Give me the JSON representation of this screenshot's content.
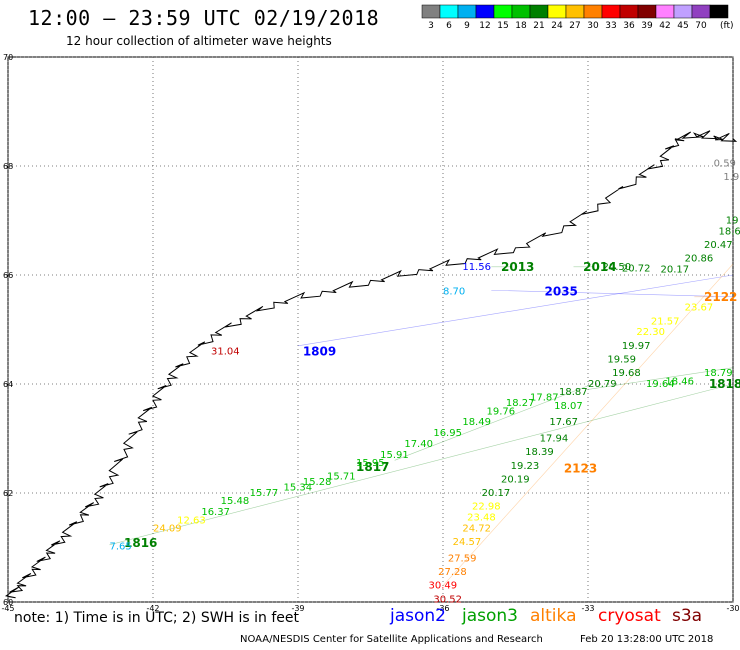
{
  "header": {
    "title": "12:00 – 23:59 UTC 02/19/2018",
    "subtitle": "12 hour collection of altimeter wave heights"
  },
  "colorbar": {
    "unit": "(ft)",
    "bins": [
      {
        "label": "3",
        "color": "#808080"
      },
      {
        "label": "6",
        "color": "#00ffff"
      },
      {
        "label": "9",
        "color": "#00b0f0"
      },
      {
        "label": "12",
        "color": "#0000ff"
      },
      {
        "label": "15",
        "color": "#00ff00"
      },
      {
        "label": "18",
        "color": "#00c000"
      },
      {
        "label": "21",
        "color": "#008000"
      },
      {
        "label": "24",
        "color": "#ffff00"
      },
      {
        "label": "27",
        "color": "#ffc000"
      },
      {
        "label": "30",
        "color": "#ff8000"
      },
      {
        "label": "33",
        "color": "#ff0000"
      },
      {
        "label": "36",
        "color": "#c00000"
      },
      {
        "label": "39",
        "color": "#800000"
      },
      {
        "label": "42",
        "color": "#ff80ff"
      },
      {
        "label": "45",
        "color": "#c0a0ff"
      },
      {
        "label": "70",
        "color": "#9040c0"
      },
      {
        "label": "",
        "color": "#000000"
      }
    ]
  },
  "axes": {
    "lon_ticks": [
      "-45",
      "-42",
      "-39",
      "-36",
      "-33",
      "-30"
    ],
    "lat_ticks": [
      "70",
      "68",
      "66",
      "64",
      "62",
      "60"
    ],
    "lon_range": [
      -45,
      -30
    ],
    "lat_range": [
      60,
      70
    ]
  },
  "coastline": {
    "points": [
      [
        -45,
        60.1
      ],
      [
        -44.8,
        60.3
      ],
      [
        -44.5,
        60.6
      ],
      [
        -44.2,
        60.9
      ],
      [
        -43.9,
        61.2
      ],
      [
        -43.5,
        61.6
      ],
      [
        -43.2,
        61.9
      ],
      [
        -42.9,
        62.3
      ],
      [
        -42.6,
        62.8
      ],
      [
        -42.3,
        63.3
      ],
      [
        -42.0,
        63.7
      ],
      [
        -41.7,
        64.1
      ],
      [
        -41.3,
        64.5
      ],
      [
        -40.8,
        64.9
      ],
      [
        -40.2,
        65.2
      ],
      [
        -39.5,
        65.5
      ],
      [
        -38.5,
        65.7
      ],
      [
        -37.5,
        65.9
      ],
      [
        -36.5,
        66.1
      ],
      [
        -35.5,
        66.3
      ],
      [
        -34.5,
        66.5
      ],
      [
        -33.5,
        66.9
      ],
      [
        -32.8,
        67.3
      ],
      [
        -32.0,
        67.8
      ],
      [
        -31.5,
        68.1
      ],
      [
        -31.2,
        68.5
      ]
    ],
    "east_points": [
      [
        -31.2,
        68.5
      ],
      [
        -30.8,
        68.6
      ],
      [
        -30.4,
        68.55
      ],
      [
        -30.0,
        68.5
      ]
    ]
  },
  "tracks": [
    {
      "sat": "jason3",
      "color": "#008000",
      "label": "1816",
      "label_pos": [
        -42.6,
        61.08
      ],
      "from": [
        -42.9,
        61.05
      ],
      "to": [
        -30.0,
        64.0
      ]
    },
    {
      "sat": "jason3",
      "color": "#008000",
      "label": "1817",
      "label_pos": [
        -37.8,
        62.48
      ],
      "from": [
        -37.0,
        62.6
      ],
      "to": [
        -32.9,
        64.0
      ]
    },
    {
      "sat": "jason3",
      "color": "#008000",
      "label": "1818",
      "label_pos": [
        -30.5,
        64.0
      ],
      "from": [
        -33.0,
        63.9
      ],
      "to": [
        -30.0,
        64.3
      ]
    },
    {
      "sat": "jason2",
      "color": "#0000ff",
      "label": "1809",
      "label_pos": [
        -38.9,
        64.6
      ],
      "from": [
        -39.0,
        64.7
      ],
      "to": [
        -30.0,
        66.0
      ]
    },
    {
      "sat": "jason3",
      "color": "#008000",
      "label": "2013",
      "label_pos": [
        -34.8,
        66.15
      ],
      "from": [
        -35.0,
        66.15
      ],
      "to": [
        -34.6,
        66.15
      ]
    },
    {
      "sat": "jason3",
      "color": "#008000",
      "label": "2014",
      "label_pos": [
        -33.1,
        66.15
      ],
      "from": [
        -33.3,
        66.15
      ],
      "to": [
        -32.9,
        66.15
      ]
    },
    {
      "sat": "jason2",
      "color": "#0000ff",
      "label": "2035",
      "label_pos": [
        -33.9,
        65.7
      ],
      "from": [
        -35.0,
        65.72
      ],
      "to": [
        -30.0,
        65.6
      ]
    },
    {
      "sat": "altika",
      "color": "#ff8000",
      "label": "2122",
      "label_pos": [
        -30.6,
        65.6
      ],
      "from": [
        -30.8,
        65.6
      ],
      "to": [
        -30.4,
        65.6
      ]
    },
    {
      "sat": "altika",
      "color": "#ff8000",
      "label": "2123",
      "label_pos": [
        -33.5,
        62.45
      ],
      "from": [
        -36.0,
        60.3
      ],
      "to": [
        -30.0,
        66.2
      ]
    }
  ],
  "wave_values": [
    {
      "v": "0.59",
      "c": "#808080",
      "lon": -30.4,
      "lat": 68.05
    },
    {
      "v": "1.9",
      "c": "#808080",
      "lon": -30.2,
      "lat": 67.8
    },
    {
      "v": "19",
      "c": "#008000",
      "lon": -30.15,
      "lat": 67.0
    },
    {
      "v": "18.6",
      "c": "#008000",
      "lon": -30.3,
      "lat": 66.8
    },
    {
      "v": "20.47",
      "c": "#008000",
      "lon": -30.6,
      "lat": 66.55
    },
    {
      "v": "20.86",
      "c": "#008000",
      "lon": -31.0,
      "lat": 66.3
    },
    {
      "v": "20.17",
      "c": "#008000",
      "lon": -31.5,
      "lat": 66.1
    },
    {
      "v": "20.50",
      "c": "#008000",
      "lon": -32.7,
      "lat": 66.15
    },
    {
      "v": "20.72",
      "c": "#008000",
      "lon": -32.3,
      "lat": 66.12
    },
    {
      "v": "11.56",
      "c": "#0000ff",
      "lon": -35.6,
      "lat": 66.15
    },
    {
      "v": "8.70",
      "c": "#00b0f0",
      "lon": -36.0,
      "lat": 65.7
    },
    {
      "v": "31.04",
      "c": "#c00000",
      "lon": -40.8,
      "lat": 64.6
    },
    {
      "v": "23.67",
      "c": "#ffff00",
      "lon": -31.0,
      "lat": 65.4
    },
    {
      "v": "22.30",
      "c": "#ffff00",
      "lon": -32.0,
      "lat": 64.95
    },
    {
      "v": "21.57",
      "c": "#ffff00",
      "lon": -31.7,
      "lat": 65.15
    },
    {
      "v": "19.97",
      "c": "#008000",
      "lon": -32.3,
      "lat": 64.7
    },
    {
      "v": "19.59",
      "c": "#008000",
      "lon": -32.6,
      "lat": 64.45
    },
    {
      "v": "19.68",
      "c": "#008000",
      "lon": -32.5,
      "lat": 64.2
    },
    {
      "v": "20.79",
      "c": "#008000",
      "lon": -33.0,
      "lat": 64.0
    },
    {
      "v": "18.87",
      "c": "#008000",
      "lon": -33.6,
      "lat": 63.85
    },
    {
      "v": "17.67",
      "c": "#008000",
      "lon": -33.8,
      "lat": 63.3
    },
    {
      "v": "17.94",
      "c": "#008000",
      "lon": -34.0,
      "lat": 63.0
    },
    {
      "v": "18.39",
      "c": "#008000",
      "lon": -34.3,
      "lat": 62.75
    },
    {
      "v": "19.23",
      "c": "#008000",
      "lon": -34.6,
      "lat": 62.5
    },
    {
      "v": "20.19",
      "c": "#008000",
      "lon": -34.8,
      "lat": 62.25
    },
    {
      "v": "20.17",
      "c": "#008000",
      "lon": -35.2,
      "lat": 62.0
    },
    {
      "v": "22.98",
      "c": "#ffff00",
      "lon": -35.4,
      "lat": 61.75
    },
    {
      "v": "23.48",
      "c": "#ffff00",
      "lon": -35.5,
      "lat": 61.55
    },
    {
      "v": "24.72",
      "c": "#ffc000",
      "lon": -35.6,
      "lat": 61.35
    },
    {
      "v": "24.57",
      "c": "#ffc000",
      "lon": -35.8,
      "lat": 61.1
    },
    {
      "v": "27.59",
      "c": "#ff8000",
      "lon": -35.9,
      "lat": 60.8
    },
    {
      "v": "27.28",
      "c": "#ff8000",
      "lon": -36.1,
      "lat": 60.55
    },
    {
      "v": "30.49",
      "c": "#ff0000",
      "lon": -36.3,
      "lat": 60.3
    },
    {
      "v": "30.52",
      "c": "#c00000",
      "lon": -36.2,
      "lat": 60.05
    },
    {
      "v": "24.09",
      "c": "#ffc000",
      "lon": -42.0,
      "lat": 61.35
    },
    {
      "v": "7.65",
      "c": "#00b0f0",
      "lon": -42.9,
      "lat": 61.02
    },
    {
      "v": "12.63",
      "c": "#ffff00",
      "lon": -41.5,
      "lat": 61.5
    },
    {
      "v": "16.37",
      "c": "#00c000",
      "lon": -41.0,
      "lat": 61.65
    },
    {
      "v": "15.48",
      "c": "#00c000",
      "lon": -40.6,
      "lat": 61.85
    },
    {
      "v": "15.77",
      "c": "#00c000",
      "lon": -40.0,
      "lat": 62.0
    },
    {
      "v": "15.34",
      "c": "#00c000",
      "lon": -39.3,
      "lat": 62.1
    },
    {
      "v": "15.28",
      "c": "#00c000",
      "lon": -38.9,
      "lat": 62.2
    },
    {
      "v": "15.71",
      "c": "#00c000",
      "lon": -38.4,
      "lat": 62.3
    },
    {
      "v": "15.95",
      "c": "#00c000",
      "lon": -37.8,
      "lat": 62.55
    },
    {
      "v": "15.91",
      "c": "#00c000",
      "lon": -37.3,
      "lat": 62.7
    },
    {
      "v": "17.40",
      "c": "#00c000",
      "lon": -36.8,
      "lat": 62.9
    },
    {
      "v": "16.95",
      "c": "#00c000",
      "lon": -36.2,
      "lat": 63.1
    },
    {
      "v": "18.49",
      "c": "#00c000",
      "lon": -35.6,
      "lat": 63.3
    },
    {
      "v": "19.76",
      "c": "#00c000",
      "lon": -35.1,
      "lat": 63.5
    },
    {
      "v": "18.27",
      "c": "#00c000",
      "lon": -34.7,
      "lat": 63.65
    },
    {
      "v": "17.87",
      "c": "#00c000",
      "lon": -34.2,
      "lat": 63.75
    },
    {
      "v": "18.07",
      "c": "#00c000",
      "lon": -33.7,
      "lat": 63.6
    },
    {
      "v": "19.64",
      "c": "#00c000",
      "lon": -31.8,
      "lat": 64.0
    },
    {
      "v": "18.46",
      "c": "#00c000",
      "lon": -31.4,
      "lat": 64.05
    },
    {
      "v": "18.79",
      "c": "#00c000",
      "lon": -30.6,
      "lat": 64.2
    }
  ],
  "legend": {
    "note": "note: 1) Time is in UTC; 2) SWH is in feet",
    "satellites": [
      {
        "name": "jason2",
        "color": "#0000ff"
      },
      {
        "name": "jason3",
        "color": "#00a000"
      },
      {
        "name": "altika",
        "color": "#ff8000"
      },
      {
        "name": "cryosat",
        "color": "#ff0000"
      },
      {
        "name": "s3a",
        "color": "#800000"
      }
    ]
  },
  "footer": {
    "credit": "NOAA/NESDIS Center for Satellite Applications and Research",
    "timestamp": "Feb 20 13:28:00 UTC 2018"
  }
}
